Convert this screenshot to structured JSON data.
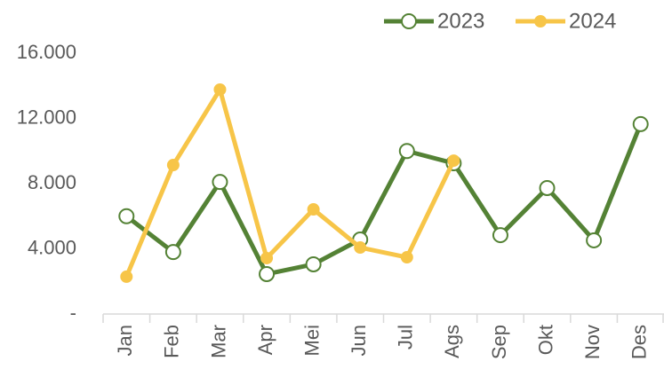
{
  "chart_data": {
    "type": "line",
    "categories": [
      "Jan",
      "Feb",
      "Mar",
      "Apr",
      "Mei",
      "Jun",
      "Jul",
      "Ags",
      "Sep",
      "Okt",
      "Nov",
      "Des"
    ],
    "series": [
      {
        "name": "2023",
        "color": "#548235",
        "marker": "hollow",
        "values": [
          6000,
          3800,
          8100,
          2450,
          3050,
          4570,
          10000,
          9250,
          4840,
          7730,
          4520,
          11650
        ]
      },
      {
        "name": "2024",
        "color": "#f7c548",
        "marker": "filled",
        "values": [
          2290,
          9140,
          13770,
          3430,
          6420,
          4080,
          3480,
          9410,
          null,
          null,
          null,
          null
        ]
      }
    ],
    "ylim": [
      0,
      16000
    ],
    "yticks": [
      {
        "value": 0,
        "label": "-"
      },
      {
        "value": 4000,
        "label": "4.000"
      },
      {
        "value": 8000,
        "label": "8.000"
      },
      {
        "value": 12000,
        "label": "12.000"
      },
      {
        "value": 16000,
        "label": "16.000"
      }
    ],
    "grid": false,
    "legend": "top"
  }
}
